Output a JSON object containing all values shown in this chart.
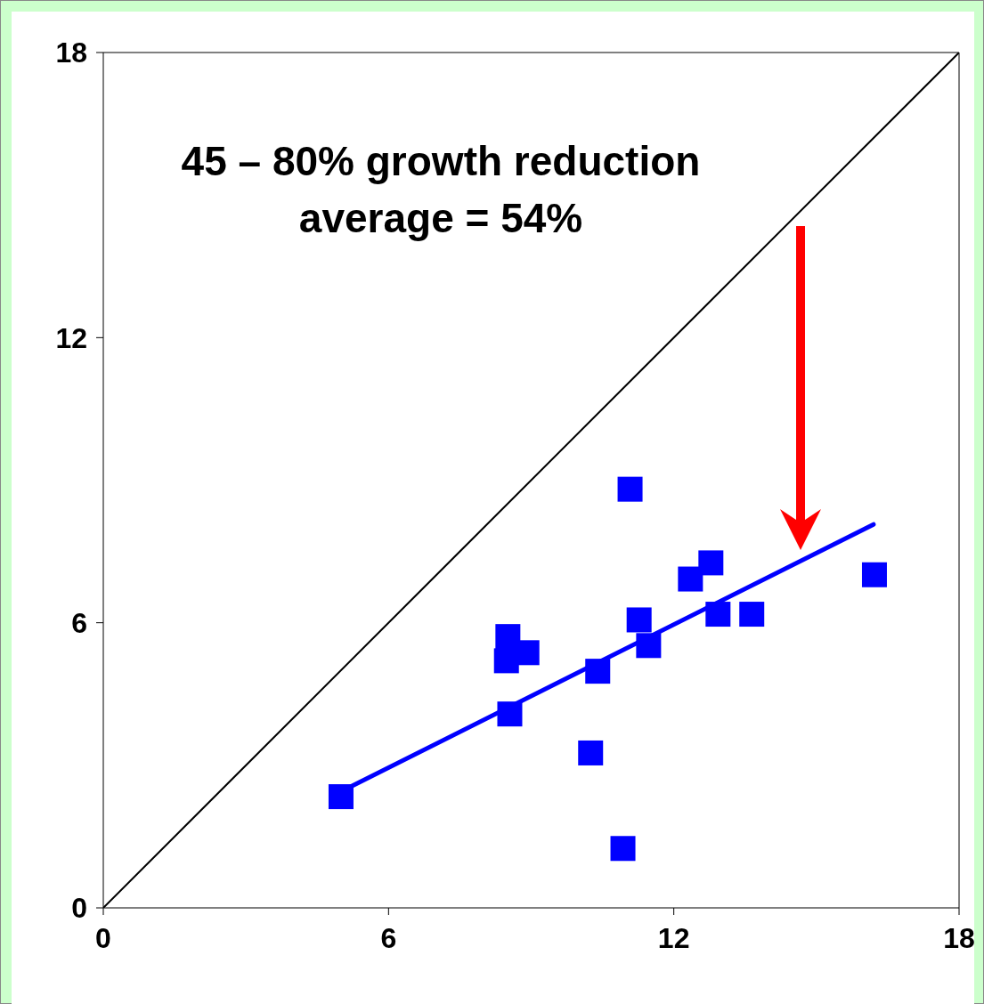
{
  "chart_data": {
    "type": "scatter",
    "annotations": [
      "45 – 80% growth reduction",
      "average = 54%"
    ],
    "xlim": [
      0,
      18
    ],
    "xticks": [
      0,
      6,
      12,
      18
    ],
    "ylim": [
      0,
      18
    ],
    "yticks": [
      0,
      6,
      12,
      18
    ],
    "grid": false,
    "legend": false,
    "series": [
      {
        "type": "line",
        "marker": "none",
        "color": "#000000",
        "x": [
          0,
          18
        ],
        "values": [
          0,
          18
        ]
      },
      {
        "type": "line",
        "marker": "none",
        "color": "#0000ff",
        "x": [
          5.0,
          16.2
        ],
        "values": [
          2.45,
          8.07
        ]
      },
      {
        "marker": "square",
        "color": "#0000ff",
        "x": [
          5.0,
          8.55,
          8.51,
          8.48,
          8.91,
          10.4,
          10.25,
          10.93,
          11.08,
          11.27,
          11.47,
          12.35,
          12.78,
          12.93,
          13.64,
          16.22
        ],
        "values": [
          2.34,
          4.08,
          5.71,
          5.2,
          5.37,
          4.98,
          3.26,
          1.25,
          8.81,
          6.06,
          5.52,
          6.92,
          7.26,
          6.18,
          6.18,
          7.01
        ]
      }
    ]
  }
}
